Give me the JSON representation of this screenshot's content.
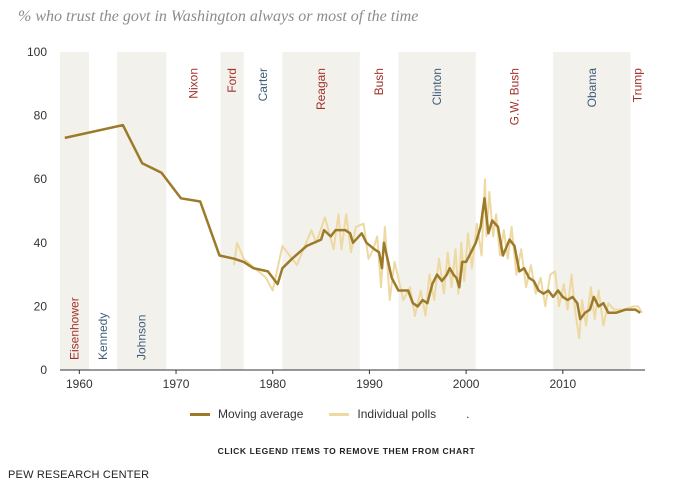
{
  "title": "% who trust the govt in Washington always or most of the time",
  "legend": {
    "moving_average": "Moving average",
    "individual_polls": "Individual polls",
    "extra": "."
  },
  "note": "CLICK LEGEND ITEMS TO REMOVE THEM FROM CHART",
  "source": "PEW RESEARCH CENTER",
  "colors": {
    "moving_average": "#9c7a2a",
    "individual_polls": "#eed9a3",
    "band": "#f3f1ec",
    "republican": "#a3322a",
    "democrat": "#3f5d7a",
    "axis": "#333333"
  },
  "chart_data": {
    "type": "line",
    "title": "% who trust the govt in Washington always or most of the time",
    "xlim": [
      1958,
      2018.5
    ],
    "ylim": [
      0,
      100
    ],
    "x_ticks": [
      1960,
      1970,
      1980,
      1990,
      2000,
      2010
    ],
    "y_ticks": [
      0,
      20,
      40,
      60,
      80,
      100
    ],
    "grid": false,
    "legend_position": "bottom",
    "presidents": [
      {
        "name": "Eisenhower",
        "start": 1958,
        "end": 1961,
        "party": "R",
        "label_position": "bottom"
      },
      {
        "name": "Kennedy",
        "start": 1961,
        "end": 1963.9,
        "party": "D",
        "label_position": "bottom"
      },
      {
        "name": "Johnson",
        "start": 1963.9,
        "end": 1969,
        "party": "D",
        "label_position": "bottom"
      },
      {
        "name": "Nixon",
        "start": 1969,
        "end": 1974.6,
        "party": "R",
        "label_position": "top"
      },
      {
        "name": "Ford",
        "start": 1974.6,
        "end": 1977,
        "party": "R",
        "label_position": "top"
      },
      {
        "name": "Carter",
        "start": 1977,
        "end": 1981,
        "party": "D",
        "label_position": "top"
      },
      {
        "name": "Reagan",
        "start": 1981,
        "end": 1989,
        "party": "R",
        "label_position": "top"
      },
      {
        "name": "Bush",
        "start": 1989,
        "end": 1993,
        "party": "R",
        "label_position": "top"
      },
      {
        "name": "Clinton",
        "start": 1993,
        "end": 2001,
        "party": "D",
        "label_position": "top"
      },
      {
        "name": "G.W. Bush",
        "start": 2001,
        "end": 2009,
        "party": "R",
        "label_position": "top"
      },
      {
        "name": "Obama",
        "start": 2009,
        "end": 2017,
        "party": "D",
        "label_position": "top"
      },
      {
        "name": "Trump",
        "start": 2017,
        "end": 2018.5,
        "party": "R",
        "label_position": "top"
      }
    ],
    "series": [
      {
        "name": "Moving average",
        "points": [
          [
            1958.5,
            73
          ],
          [
            1964.5,
            77
          ],
          [
            1966.5,
            65
          ],
          [
            1968.5,
            62
          ],
          [
            1970.5,
            54
          ],
          [
            1972.5,
            53
          ],
          [
            1974.5,
            36
          ],
          [
            1976,
            35
          ],
          [
            1977,
            34
          ],
          [
            1978,
            32
          ],
          [
            1979.5,
            31
          ],
          [
            1980.5,
            27
          ],
          [
            1981,
            32
          ],
          [
            1982,
            35
          ],
          [
            1983.5,
            39
          ],
          [
            1985,
            41
          ],
          [
            1985.3,
            44
          ],
          [
            1986,
            42
          ],
          [
            1986.5,
            44
          ],
          [
            1987.5,
            44
          ],
          [
            1988,
            43
          ],
          [
            1988.3,
            40
          ],
          [
            1989.2,
            43
          ],
          [
            1989.7,
            40
          ],
          [
            1990.5,
            38
          ],
          [
            1991,
            37
          ],
          [
            1991.3,
            32
          ],
          [
            1991.5,
            40
          ],
          [
            1992.3,
            29
          ],
          [
            1993,
            25
          ],
          [
            1994,
            25
          ],
          [
            1994.5,
            21
          ],
          [
            1995,
            20
          ],
          [
            1995.5,
            22
          ],
          [
            1996,
            21
          ],
          [
            1996.5,
            27
          ],
          [
            1997,
            30
          ],
          [
            1997.5,
            28
          ],
          [
            1998,
            30
          ],
          [
            1998.3,
            32
          ],
          [
            1998.7,
            30
          ],
          [
            1999,
            29
          ],
          [
            1999.3,
            26
          ],
          [
            1999.6,
            34
          ],
          [
            2000,
            34
          ],
          [
            2000.5,
            37
          ],
          [
            2001,
            40
          ],
          [
            2001.5,
            45
          ],
          [
            2001.9,
            54
          ],
          [
            2002.3,
            43
          ],
          [
            2002.7,
            47
          ],
          [
            2003.3,
            45
          ],
          [
            2003.8,
            36
          ],
          [
            2004.5,
            41
          ],
          [
            2005,
            39
          ],
          [
            2005.5,
            31
          ],
          [
            2006,
            32
          ],
          [
            2006.5,
            29
          ],
          [
            2007,
            28
          ],
          [
            2007.5,
            25
          ],
          [
            2008,
            24
          ],
          [
            2008.5,
            25
          ],
          [
            2009,
            23
          ],
          [
            2009.5,
            25
          ],
          [
            2010,
            23
          ],
          [
            2010.5,
            22
          ],
          [
            2011,
            23
          ],
          [
            2011.5,
            21
          ],
          [
            2011.8,
            16
          ],
          [
            2012.3,
            18
          ],
          [
            2012.8,
            19
          ],
          [
            2013.2,
            23
          ],
          [
            2013.7,
            20
          ],
          [
            2014.2,
            21
          ],
          [
            2014.7,
            18
          ],
          [
            2015.5,
            18
          ],
          [
            2016.5,
            19
          ],
          [
            2017.5,
            19
          ],
          [
            2018,
            18
          ]
        ]
      },
      {
        "name": "Individual polls",
        "points": [
          [
            1976,
            33
          ],
          [
            1976.3,
            40
          ],
          [
            1977,
            35
          ],
          [
            1979.3,
            29
          ],
          [
            1980,
            25
          ],
          [
            1981,
            39
          ],
          [
            1982.5,
            33
          ],
          [
            1984,
            44
          ],
          [
            1984.5,
            40
          ],
          [
            1985.4,
            48
          ],
          [
            1986.3,
            38
          ],
          [
            1986.8,
            49
          ],
          [
            1987.1,
            38
          ],
          [
            1987.6,
            49
          ],
          [
            1988.1,
            37
          ],
          [
            1988.6,
            45
          ],
          [
            1989.4,
            46
          ],
          [
            1989.9,
            35
          ],
          [
            1990.4,
            38
          ],
          [
            1990.8,
            42
          ],
          [
            1991.2,
            26
          ],
          [
            1991.6,
            45
          ],
          [
            1992.1,
            22
          ],
          [
            1992.6,
            34
          ],
          [
            1993.5,
            22
          ],
          [
            1994.2,
            26
          ],
          [
            1994.7,
            17
          ],
          [
            1995.3,
            25
          ],
          [
            1995.8,
            17
          ],
          [
            1996.2,
            30
          ],
          [
            1996.7,
            22
          ],
          [
            1997.2,
            35
          ],
          [
            1997.7,
            24
          ],
          [
            1998.1,
            37
          ],
          [
            1998.5,
            26
          ],
          [
            1998.9,
            38
          ],
          [
            1999.2,
            24
          ],
          [
            1999.5,
            40
          ],
          [
            1999.8,
            28
          ],
          [
            2000.2,
            43
          ],
          [
            2000.6,
            32
          ],
          [
            2001.1,
            46
          ],
          [
            2001.6,
            36
          ],
          [
            2001.95,
            60
          ],
          [
            2002.1,
            42
          ],
          [
            2002.4,
            56
          ],
          [
            2002.8,
            42
          ],
          [
            2003.1,
            49
          ],
          [
            2003.5,
            36
          ],
          [
            2003.9,
            44
          ],
          [
            2004.3,
            35
          ],
          [
            2004.7,
            45
          ],
          [
            2005.2,
            30
          ],
          [
            2005.7,
            38
          ],
          [
            2006.2,
            26
          ],
          [
            2006.7,
            33
          ],
          [
            2007.2,
            24
          ],
          [
            2007.7,
            29
          ],
          [
            2008.2,
            20
          ],
          [
            2008.7,
            30
          ],
          [
            2009.2,
            31
          ],
          [
            2009.6,
            20
          ],
          [
            2010.1,
            27
          ],
          [
            2010.5,
            19
          ],
          [
            2010.9,
            30
          ],
          [
            2011.3,
            18
          ],
          [
            2011.7,
            10
          ],
          [
            2012,
            22
          ],
          [
            2012.4,
            14
          ],
          [
            2012.9,
            26
          ],
          [
            2013.3,
            16
          ],
          [
            2013.7,
            25
          ],
          [
            2014.2,
            14
          ],
          [
            2014.7,
            21
          ],
          [
            2015.3,
            19
          ],
          [
            2016.3,
            19
          ],
          [
            2017.3,
            20
          ],
          [
            2017.8,
            20
          ],
          [
            2018.2,
            18
          ]
        ]
      }
    ]
  }
}
